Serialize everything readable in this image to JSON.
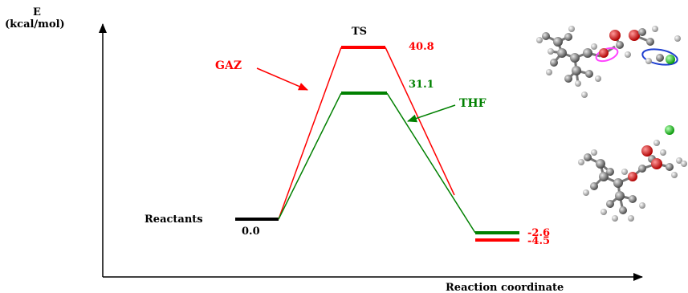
{
  "axes": {
    "y_label_line1": "E",
    "y_label_line2": "(kcal/mol)",
    "x_label": "Reaction coordinate"
  },
  "levels": {
    "reactants_label": "Reactants",
    "reactants_value": "0.0",
    "ts_label": "TS",
    "gaz_ts_value": "40.8",
    "thf_ts_value": "31.1",
    "thf_product_value": "-2.6",
    "gaz_product_value": "-4.5"
  },
  "series": {
    "gaz_name": "GAZ",
    "thf_name": "THF"
  },
  "colors": {
    "gaz": "#ff0000",
    "thf": "#008000",
    "reactant": "#000000",
    "axis": "#000000"
  },
  "molecule_images": [
    "transition-state-structure",
    "product-structure"
  ]
}
